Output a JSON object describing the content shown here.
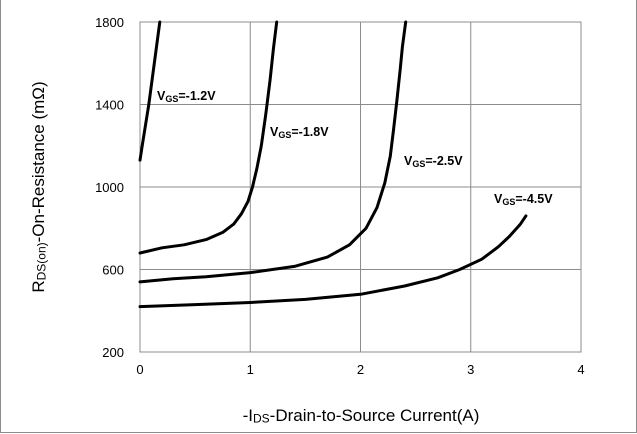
{
  "chart_data": {
    "type": "line",
    "title": "",
    "xlabel": {
      "prefix": "-I",
      "sub": "DS",
      "rest": "-Drain-to-Source Current(A)"
    },
    "ylabel": {
      "prefix": "R",
      "sub": "DS(on)",
      "rest": "-On-Resistance (mΩ)"
    },
    "xlim": [
      0,
      4
    ],
    "ylim": [
      200,
      1800
    ],
    "xticks": [
      "0",
      "1",
      "2",
      "3",
      "4"
    ],
    "yticks": [
      "200",
      "600",
      "1000",
      "1400",
      "1800"
    ],
    "grid": true,
    "legend": "none",
    "series": [
      {
        "name": {
          "prefix": "V",
          "sub": "GS",
          "rest": "=-1.2V"
        },
        "x": [
          0.0,
          0.02,
          0.05,
          0.08,
          0.1,
          0.13,
          0.16,
          0.18
        ],
        "y": [
          1130,
          1200,
          1300,
          1400,
          1480,
          1600,
          1720,
          1800
        ]
      },
      {
        "name": {
          "prefix": "V",
          "sub": "GS",
          "rest": "=-1.8V"
        },
        "x": [
          0.0,
          0.2,
          0.4,
          0.6,
          0.75,
          0.85,
          0.92,
          0.98,
          1.02,
          1.06,
          1.1,
          1.14,
          1.18,
          1.21,
          1.24
        ],
        "y": [
          680,
          705,
          720,
          745,
          780,
          820,
          870,
          930,
          1000,
          1090,
          1200,
          1350,
          1520,
          1670,
          1800
        ]
      },
      {
        "name": {
          "prefix": "V",
          "sub": "GS",
          "rest": "=-2.5V"
        },
        "x": [
          0.0,
          0.3,
          0.6,
          1.0,
          1.4,
          1.7,
          1.9,
          2.05,
          2.15,
          2.22,
          2.27,
          2.3,
          2.33,
          2.36,
          2.38,
          2.41
        ],
        "y": [
          540,
          555,
          565,
          585,
          615,
          660,
          720,
          800,
          900,
          1020,
          1150,
          1280,
          1420,
          1570,
          1680,
          1800
        ]
      },
      {
        "name": {
          "prefix": "V",
          "sub": "GS",
          "rest": "=-4.5V"
        },
        "x": [
          0.0,
          0.5,
          1.0,
          1.5,
          2.0,
          2.4,
          2.7,
          2.9,
          3.1,
          3.25,
          3.35,
          3.45,
          3.5
        ],
        "y": [
          420,
          430,
          440,
          455,
          480,
          520,
          560,
          600,
          650,
          710,
          760,
          820,
          860
        ]
      }
    ]
  }
}
